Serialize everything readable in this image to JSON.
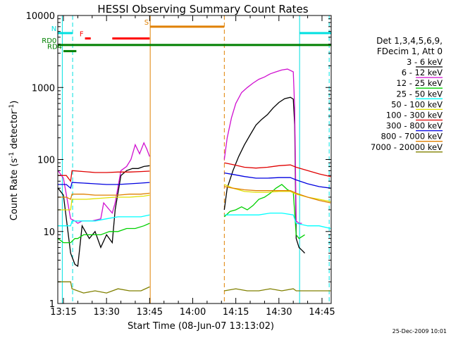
{
  "chart_data": {
    "type": "line",
    "title": "HESSI Observing Summary Count Rates",
    "xlabel": "Start Time (08-Jun-07 13:13:02)",
    "ylabel_main": "Count Rate (s",
    "ylabel_sup1": "-1",
    "ylabel_mid": " detector",
    "ylabel_sup2": "-1",
    "ylabel_end": ")",
    "y_scale": "log",
    "ylim": [
      1,
      10000
    ],
    "xlim_minutes": [
      13.0333,
      108.2
    ],
    "x_ticks": [
      {
        "label": "13:15",
        "t": 15
      },
      {
        "label": "13:30",
        "t": 30
      },
      {
        "label": "13:45",
        "t": 45
      },
      {
        "label": "14:00",
        "t": 60
      },
      {
        "label": "14:15",
        "t": 75
      },
      {
        "label": "14:30",
        "t": 90
      },
      {
        "label": "14:45",
        "t": 105
      }
    ],
    "y_ticks": [
      {
        "label": "1",
        "v": 1
      },
      {
        "label": "10",
        "v": 10
      },
      {
        "label": "100",
        "v": 100
      },
      {
        "label": "1000",
        "v": 1000
      },
      {
        "label": "10000",
        "v": 10000
      }
    ],
    "legend": {
      "title_line1": "Det 1,3,4,5,6,9,",
      "title_line2": "FDecim 1, Att 0",
      "placement": "right"
    },
    "series": [
      {
        "name": "3 - 6 keV",
        "color": "#000000",
        "points": [
          [
            13.1,
            40
          ],
          [
            15,
            32
          ],
          [
            17.5,
            5
          ],
          [
            19,
            3.5
          ],
          [
            20,
            3.3
          ],
          [
            21.5,
            12
          ],
          [
            24,
            8
          ],
          [
            26,
            10
          ],
          [
            28,
            6
          ],
          [
            30,
            9
          ],
          [
            32,
            7
          ],
          [
            33,
            20
          ],
          [
            35,
            60
          ],
          [
            37,
            70
          ],
          [
            39,
            75
          ],
          [
            41,
            75
          ],
          [
            43,
            80
          ],
          [
            45,
            82
          ],
          [
            71,
            20
          ],
          [
            72,
            40
          ],
          [
            74,
            70
          ],
          [
            76,
            110
          ],
          [
            78,
            160
          ],
          [
            80,
            220
          ],
          [
            82,
            300
          ],
          [
            84,
            360
          ],
          [
            86,
            420
          ],
          [
            88,
            520
          ],
          [
            90,
            620
          ],
          [
            92,
            700
          ],
          [
            94,
            730
          ],
          [
            95,
            690
          ],
          [
            95.5,
            300
          ],
          [
            96,
            8
          ],
          [
            97,
            6
          ],
          [
            98,
            5.5
          ],
          [
            99,
            5
          ]
        ]
      },
      {
        "name": "6 - 12 keV",
        "color": "#d010d0",
        "points": [
          [
            13.1,
            70
          ],
          [
            15,
            55
          ],
          [
            17.5,
            15
          ],
          [
            19,
            14
          ],
          [
            20,
            13
          ],
          [
            21.5,
            14
          ],
          [
            25,
            14
          ],
          [
            28,
            15
          ],
          [
            29,
            25
          ],
          [
            31,
            20
          ],
          [
            32,
            18
          ],
          [
            33,
            25
          ],
          [
            35,
            70
          ],
          [
            37,
            80
          ],
          [
            38.5,
            100
          ],
          [
            40,
            160
          ],
          [
            41.5,
            120
          ],
          [
            43,
            170
          ],
          [
            44,
            140
          ],
          [
            45,
            110
          ],
          [
            71,
            100
          ],
          [
            72,
            200
          ],
          [
            73.5,
            380
          ],
          [
            75,
            600
          ],
          [
            77,
            850
          ],
          [
            79,
            1000
          ],
          [
            81,
            1150
          ],
          [
            83,
            1300
          ],
          [
            85,
            1400
          ],
          [
            87,
            1550
          ],
          [
            89,
            1650
          ],
          [
            91,
            1750
          ],
          [
            93,
            1800
          ],
          [
            95,
            1650
          ],
          [
            95.5,
            500
          ],
          [
            96,
            14
          ],
          [
            97,
            13
          ],
          [
            98,
            13
          ]
        ]
      },
      {
        "name": "12 - 25 keV",
        "color": "#00d000",
        "points": [
          [
            13.1,
            8
          ],
          [
            15,
            7
          ],
          [
            17.5,
            7
          ],
          [
            19,
            8
          ],
          [
            20,
            8
          ],
          [
            22,
            9
          ],
          [
            25,
            9
          ],
          [
            28,
            9
          ],
          [
            31,
            10
          ],
          [
            34,
            10
          ],
          [
            37,
            11
          ],
          [
            40,
            11
          ],
          [
            43,
            12
          ],
          [
            45,
            13
          ],
          [
            71,
            16
          ],
          [
            73,
            19
          ],
          [
            75,
            20
          ],
          [
            77,
            22
          ],
          [
            79,
            20
          ],
          [
            81,
            23
          ],
          [
            83,
            28
          ],
          [
            85,
            30
          ],
          [
            87,
            34
          ],
          [
            89,
            40
          ],
          [
            91,
            45
          ],
          [
            93,
            38
          ],
          [
            95,
            35
          ],
          [
            96,
            9
          ],
          [
            97,
            8
          ],
          [
            99,
            9
          ]
        ]
      },
      {
        "name": "25 - 50 keV",
        "color": "#00ffff",
        "points": [
          [
            13.1,
            12
          ],
          [
            17.5,
            12
          ],
          [
            18,
            14
          ],
          [
            22,
            14
          ],
          [
            26,
            14
          ],
          [
            30,
            15
          ],
          [
            34,
            16
          ],
          [
            38,
            16
          ],
          [
            42,
            16
          ],
          [
            45,
            17
          ],
          [
            71,
            17
          ],
          [
            75,
            17
          ],
          [
            79,
            17
          ],
          [
            83,
            17
          ],
          [
            87,
            18
          ],
          [
            91,
            18
          ],
          [
            95,
            17
          ],
          [
            96,
            13
          ],
          [
            100,
            12
          ],
          [
            104,
            12
          ],
          [
            108,
            11
          ]
        ]
      },
      {
        "name": "50 - 100 keV",
        "color": "#e0e000",
        "points": [
          [
            13.1,
            20
          ],
          [
            17.5,
            20
          ],
          [
            18,
            28
          ],
          [
            23,
            28
          ],
          [
            28,
            29
          ],
          [
            33,
            30
          ],
          [
            38,
            30
          ],
          [
            43,
            31
          ],
          [
            45,
            32
          ],
          [
            71,
            45
          ],
          [
            74,
            40
          ],
          [
            78,
            36
          ],
          [
            82,
            35
          ],
          [
            86,
            35
          ],
          [
            90,
            36
          ],
          [
            94,
            36
          ],
          [
            96,
            33
          ],
          [
            100,
            30
          ],
          [
            104,
            28
          ],
          [
            108,
            26
          ]
        ]
      },
      {
        "name": "100 - 300 keV",
        "color": "#e00000",
        "points": [
          [
            13.1,
            60
          ],
          [
            16,
            60
          ],
          [
            17.5,
            50
          ],
          [
            18,
            70
          ],
          [
            22,
            68
          ],
          [
            26,
            66
          ],
          [
            30,
            66
          ],
          [
            34,
            67
          ],
          [
            38,
            67
          ],
          [
            42,
            68
          ],
          [
            45,
            69
          ],
          [
            71,
            90
          ],
          [
            74,
            85
          ],
          [
            78,
            78
          ],
          [
            82,
            76
          ],
          [
            86,
            78
          ],
          [
            90,
            82
          ],
          [
            94,
            84
          ],
          [
            96,
            78
          ],
          [
            100,
            70
          ],
          [
            104,
            63
          ],
          [
            108,
            58
          ]
        ]
      },
      {
        "name": "300 - 800 keV",
        "color": "#0000e0",
        "points": [
          [
            13.1,
            45
          ],
          [
            16,
            45
          ],
          [
            17.5,
            40
          ],
          [
            18,
            48
          ],
          [
            22,
            47
          ],
          [
            26,
            46
          ],
          [
            30,
            45
          ],
          [
            34,
            45
          ],
          [
            38,
            46
          ],
          [
            42,
            47
          ],
          [
            45,
            48
          ],
          [
            71,
            65
          ],
          [
            74,
            62
          ],
          [
            78,
            58
          ],
          [
            82,
            55
          ],
          [
            86,
            55
          ],
          [
            90,
            56
          ],
          [
            94,
            56
          ],
          [
            96,
            52
          ],
          [
            100,
            46
          ],
          [
            104,
            42
          ],
          [
            108,
            40
          ]
        ]
      },
      {
        "name": "800 - 7000 keV",
        "color": "#e08000",
        "points": [
          [
            13.1,
            30
          ],
          [
            16,
            30
          ],
          [
            17.5,
            28
          ],
          [
            18,
            33
          ],
          [
            22,
            33
          ],
          [
            26,
            32
          ],
          [
            30,
            32
          ],
          [
            34,
            32
          ],
          [
            38,
            33
          ],
          [
            42,
            33
          ],
          [
            45,
            34
          ],
          [
            71,
            42
          ],
          [
            74,
            40
          ],
          [
            78,
            38
          ],
          [
            82,
            37
          ],
          [
            86,
            37
          ],
          [
            90,
            37
          ],
          [
            94,
            37
          ],
          [
            96,
            34
          ],
          [
            100,
            30
          ],
          [
            104,
            27
          ],
          [
            108,
            25
          ]
        ]
      },
      {
        "name": "7000 - 20000 keV",
        "color": "#808000",
        "points": [
          [
            13.1,
            2
          ],
          [
            17.5,
            2
          ],
          [
            18,
            1.6
          ],
          [
            22,
            1.4
          ],
          [
            26,
            1.5
          ],
          [
            30,
            1.4
          ],
          [
            34,
            1.6
          ],
          [
            38,
            1.5
          ],
          [
            42,
            1.5
          ],
          [
            45,
            1.7
          ],
          [
            71,
            1.5
          ],
          [
            75,
            1.6
          ],
          [
            79,
            1.5
          ],
          [
            83,
            1.5
          ],
          [
            87,
            1.6
          ],
          [
            91,
            1.5
          ],
          [
            95,
            1.6
          ],
          [
            96,
            1.5
          ],
          [
            100,
            1.5
          ],
          [
            104,
            1.5
          ],
          [
            108,
            1.5
          ]
        ]
      }
    ],
    "flags": [
      {
        "label": "N",
        "color": "#00e0e0",
        "t0": 13.1,
        "t1": 18.2,
        "v": 5700,
        "show_label": true
      },
      {
        "label": "",
        "color": "#00e0e0",
        "t0": 97.2,
        "t1": 108.2,
        "v": 5700,
        "show_label": false
      },
      {
        "label": "S",
        "color": "#e08000",
        "t0": 45.2,
        "t1": 71.0,
        "v": 7000,
        "show_label": true
      },
      {
        "label": "F",
        "color": "#ff0000",
        "t0": 22.5,
        "t1": 24.5,
        "v": 4800,
        "show_label": true
      },
      {
        "label": "",
        "color": "#ff0000",
        "t0": 32.0,
        "t1": 45.0,
        "v": 4800,
        "show_label": false
      },
      {
        "label": "RD0",
        "color": "#008000",
        "t0": 13.1,
        "t1": 108.2,
        "v": 3900,
        "show_label": true
      },
      {
        "label": "RD4",
        "color": "#008000",
        "t0": 15.0,
        "t1": 19.5,
        "v": 3200,
        "show_label": true
      }
    ],
    "vlines": [
      {
        "t": 14.6,
        "color": "#00e0e0",
        "style": "solid"
      },
      {
        "t": 18.2,
        "color": "#00e0e0",
        "style": "dashed"
      },
      {
        "t": 45.2,
        "color": "#e08000",
        "style": "solid"
      },
      {
        "t": 71.0,
        "color": "#e08000",
        "style": "dashed"
      },
      {
        "t": 97.2,
        "color": "#00e0e0",
        "style": "solid"
      },
      {
        "t": 107.5,
        "color": "#00e0e0",
        "style": "dashed"
      }
    ],
    "grid": false
  },
  "footer": {
    "date_stamp": "25-Dec-2009 10:01"
  }
}
